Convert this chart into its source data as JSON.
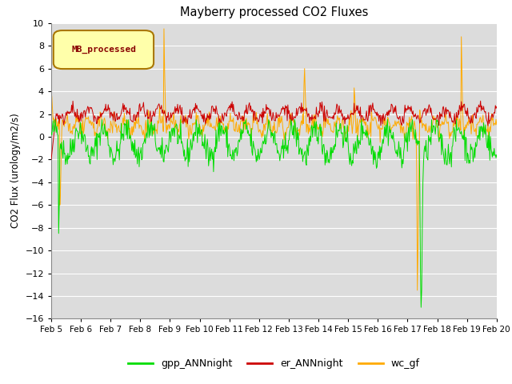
{
  "title": "Mayberry processed CO2 Fluxes",
  "ylabel": "CO2 Flux (urology/m2/s)",
  "ylim": [
    -16,
    10
  ],
  "yticks": [
    -16,
    -14,
    -12,
    -10,
    -8,
    -6,
    -4,
    -2,
    0,
    2,
    4,
    6,
    8,
    10
  ],
  "xtick_labels": [
    "Feb 5",
    "Feb 6",
    "Feb 7",
    "Feb 8",
    "Feb 9",
    "Feb 10",
    "Feb 11",
    "Feb 12",
    "Feb 13",
    "Feb 14",
    "Feb 15",
    "Feb 16",
    "Feb 17",
    "Feb 18",
    "Feb 19",
    "Feb 20"
  ],
  "legend_label": "MB_processed",
  "legend_items": [
    "gpp_ANNnight",
    "er_ANNnight",
    "wc_gf"
  ],
  "colors": {
    "gpp_ANNnight": "#00dd00",
    "er_ANNnight": "#cc0000",
    "wc_gf": "#ffaa00"
  },
  "fig_bg_color": "#ffffff",
  "plot_bg_color": "#dcdcdc",
  "grid_color": "#ffffff",
  "seed": 42,
  "n_points": 720
}
